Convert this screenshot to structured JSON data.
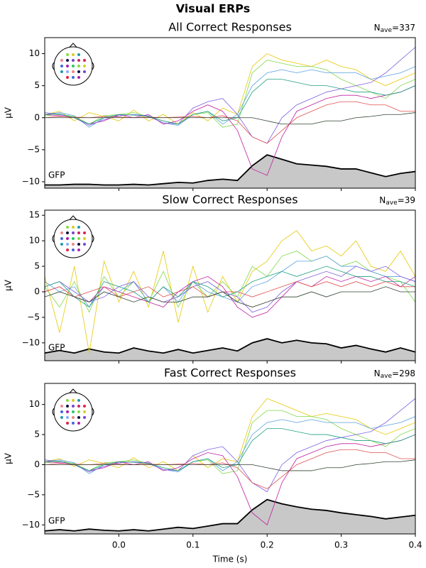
{
  "suptitle": "Visual ERPs",
  "chart_data": [
    {
      "type": "line",
      "title": "All Correct Responses",
      "ylabel": "µV",
      "annotation_n": "N",
      "annotation_sub": "ave",
      "annotation_value": "=337",
      "xlim": [
        -0.1,
        0.4
      ],
      "xticks": [
        {
          "value": 0,
          "label": "0.0"
        },
        0.1,
        0.2,
        0.3,
        0.4
      ],
      "ylim": [
        -11,
        12.5
      ],
      "yticks": [
        {
          "value": -10,
          "label": "−10"
        },
        {
          "value": -5,
          "label": "−5"
        },
        0,
        5,
        10
      ],
      "x": [
        -0.1,
        -0.08,
        -0.06,
        -0.04,
        -0.02,
        0,
        0.02,
        0.04,
        0.06,
        0.08,
        0.1,
        0.12,
        0.14,
        0.16,
        0.18,
        0.2,
        0.22,
        0.24,
        0.26,
        0.28,
        0.3,
        0.32,
        0.34,
        0.36,
        0.38,
        0.4
      ],
      "series": [
        {
          "color": "#e6c800",
          "values": [
            0.5,
            1,
            -0.5,
            0.8,
            0.2,
            -0.5,
            1.2,
            -0.5,
            0.5,
            -1,
            0.8,
            -0.5,
            1.5,
            0.5,
            8,
            10,
            9,
            8.5,
            8,
            9,
            8,
            7.5,
            6,
            5,
            6,
            7
          ]
        },
        {
          "color": "#7fd94a",
          "values": [
            0.3,
            0.5,
            0.2,
            -1,
            0.3,
            0.5,
            0.8,
            0.2,
            -0.5,
            -1,
            0.5,
            0.8,
            -1.5,
            -1,
            7,
            9,
            8.5,
            8,
            8,
            7.5,
            6,
            5,
            4,
            3,
            5,
            6
          ]
        },
        {
          "color": "#5aa0e0",
          "values": [
            0.5,
            0.8,
            0.3,
            -1.5,
            0,
            0.3,
            0.5,
            0.3,
            -0.8,
            -1.2,
            0.5,
            1,
            -1,
            0.5,
            5,
            7,
            7.5,
            7,
            7.5,
            7,
            7,
            7,
            6,
            6.5,
            7,
            8
          ]
        },
        {
          "color": "#c020a0",
          "values": [
            0.5,
            0.3,
            0,
            -1,
            -0.5,
            0.5,
            0,
            0.5,
            -1,
            -0.5,
            1,
            2,
            1,
            -2,
            -8,
            -9,
            -3,
            1,
            2,
            3,
            3.5,
            3.5,
            3,
            3.5,
            4,
            5
          ]
        },
        {
          "color": "#8060e0",
          "values": [
            0.8,
            0.5,
            0,
            -1.2,
            -0.3,
            0.3,
            0.5,
            0.2,
            -0.8,
            -1,
            1.5,
            2.5,
            3,
            0.5,
            -3,
            -4,
            0,
            2,
            3,
            4,
            4.5,
            5,
            5.5,
            7,
            9,
            11
          ]
        },
        {
          "color": "#e05050",
          "values": [
            0,
            0.2,
            0.1,
            0,
            0.2,
            0.1,
            0,
            0.1,
            0,
            0.1,
            0.2,
            0,
            0.3,
            -0.5,
            -3,
            -4,
            -2,
            0,
            1,
            2,
            2.5,
            2.5,
            2,
            2,
            1,
            1
          ]
        },
        {
          "color": "#20a080",
          "values": [
            0.5,
            0.6,
            0,
            -1,
            0,
            0.5,
            0.4,
            0.2,
            -0.5,
            -1,
            0.5,
            1,
            -0.5,
            0,
            4,
            6,
            6,
            5.5,
            5,
            5,
            4.5,
            4,
            4,
            3.5,
            4,
            5
          ]
        },
        {
          "color": "#304030",
          "values": [
            0,
            0,
            0,
            0,
            0,
            0,
            0,
            0,
            0,
            0,
            0,
            0,
            0,
            0,
            0,
            -0.5,
            -1,
            -1,
            -1,
            -0.5,
            -0.5,
            0,
            0.2,
            0.5,
            0.5,
            0.8
          ]
        }
      ],
      "gfp": {
        "name": "GFP",
        "values": [
          -10.5,
          -10.5,
          -10.4,
          -10.4,
          -10.5,
          -10.5,
          -10.4,
          -10.5,
          -10.3,
          -10.1,
          -10.2,
          -9.8,
          -9.6,
          -9.8,
          -7.5,
          -5.8,
          -6.5,
          -7.2,
          -7.4,
          -7.6,
          -8,
          -8,
          -8.6,
          -9.2,
          -8.7,
          -8.4
        ]
      }
    },
    {
      "type": "line",
      "title": "Slow Correct Responses",
      "ylabel": "µV",
      "annotation_n": "N",
      "annotation_sub": "ave",
      "annotation_value": "=39",
      "xlim": [
        -0.1,
        0.4
      ],
      "xticks": [
        {
          "value": 0,
          "label": "0.0"
        },
        0.1,
        0.2,
        0.3,
        0.4
      ],
      "ylim": [
        -13.5,
        16
      ],
      "yticks": [
        {
          "value": -10,
          "label": "−10"
        },
        {
          "value": -5,
          "label": "−5"
        },
        0,
        5,
        10,
        15
      ],
      "x": [
        -0.1,
        -0.08,
        -0.06,
        -0.04,
        -0.02,
        0,
        0.02,
        0.04,
        0.06,
        0.08,
        0.1,
        0.12,
        0.14,
        0.16,
        0.18,
        0.2,
        0.22,
        0.24,
        0.26,
        0.28,
        0.3,
        0.32,
        0.34,
        0.36,
        0.38,
        0.4
      ],
      "series": [
        {
          "color": "#e6c800",
          "values": [
            3,
            -8,
            5,
            -12,
            6,
            -2,
            4,
            -3,
            8,
            -6,
            5,
            -4,
            3,
            -2,
            4,
            6,
            10,
            12,
            8,
            9,
            7,
            10,
            5,
            4,
            8,
            3
          ]
        },
        {
          "color": "#7fd94a",
          "values": [
            1,
            -3,
            2,
            -4,
            3,
            -1,
            2,
            -2,
            4,
            -3,
            2,
            -1,
            2,
            -1,
            5,
            3,
            7,
            8,
            6,
            7,
            5,
            6,
            4,
            3,
            2,
            -2
          ]
        },
        {
          "color": "#5aa0e0",
          "values": [
            2,
            0,
            1,
            -3,
            1,
            0,
            2,
            -2,
            1,
            -2,
            2,
            0,
            -1,
            -2,
            1,
            2,
            4,
            6,
            6,
            7,
            5,
            5,
            4,
            3,
            3,
            2
          ]
        },
        {
          "color": "#c020a0",
          "values": [
            0,
            1,
            -1,
            -2,
            1,
            0,
            -1,
            -2,
            -3,
            0,
            2,
            3,
            1,
            -3,
            -5,
            -4,
            -1,
            2,
            1,
            3,
            2,
            3,
            2,
            3,
            1,
            3
          ]
        },
        {
          "color": "#8060e0",
          "values": [
            1,
            2,
            0,
            -2,
            -1,
            1,
            2,
            -1,
            -2,
            -1,
            1,
            2,
            0,
            -1,
            -4,
            -3,
            0,
            2,
            3,
            4,
            3,
            5,
            4,
            5,
            3,
            2
          ]
        },
        {
          "color": "#e05050",
          "values": [
            0,
            1,
            -1,
            0,
            1,
            -1,
            0,
            1,
            -1,
            0,
            1,
            -1,
            0,
            0,
            -1,
            0,
            1,
            2,
            1,
            2,
            1,
            2,
            1,
            2,
            1,
            1
          ]
        },
        {
          "color": "#20a080",
          "values": [
            1,
            2,
            -1,
            -3,
            2,
            1,
            0,
            -2,
            1,
            -1,
            2,
            1,
            -1,
            0,
            2,
            3,
            4,
            3,
            4,
            5,
            4,
            3,
            3,
            2,
            2,
            1
          ]
        },
        {
          "color": "#304030",
          "values": [
            -1,
            0,
            -1,
            -2,
            0,
            -1,
            -2,
            -1,
            -2,
            -2,
            -1,
            -1,
            0,
            -2,
            -3,
            -2,
            -1,
            -1,
            0,
            -1,
            0,
            0,
            0,
            1,
            0,
            0
          ]
        }
      ],
      "gfp": {
        "name": "GFP",
        "values": [
          -12,
          -11.5,
          -12,
          -11.2,
          -11.8,
          -12,
          -11,
          -11.6,
          -12,
          -11.3,
          -12,
          -11.5,
          -11,
          -11.6,
          -10,
          -9.2,
          -10,
          -9.5,
          -10,
          -10.2,
          -11,
          -10.5,
          -11.2,
          -11.8,
          -11,
          -11.8
        ]
      }
    },
    {
      "type": "line",
      "title": "Fast Correct Responses",
      "ylabel": "µV",
      "xlabel": "Time (s)",
      "annotation_n": "N",
      "annotation_sub": "ave",
      "annotation_value": "=298",
      "xlim": [
        -0.1,
        0.4
      ],
      "xticks": [
        {
          "value": 0,
          "label": "0.0"
        },
        0.1,
        0.2,
        0.3,
        0.4
      ],
      "ylim": [
        -11.5,
        13.5
      ],
      "yticks": [
        {
          "value": -10,
          "label": "−10"
        },
        {
          "value": -5,
          "label": "−5"
        },
        0,
        5,
        10
      ],
      "x": [
        -0.1,
        -0.08,
        -0.06,
        -0.04,
        -0.02,
        0,
        0.02,
        0.04,
        0.06,
        0.08,
        0.1,
        0.12,
        0.14,
        0.16,
        0.18,
        0.2,
        0.22,
        0.24,
        0.26,
        0.28,
        0.3,
        0.32,
        0.34,
        0.36,
        0.38,
        0.4
      ],
      "series": [
        {
          "color": "#e6c800",
          "values": [
            0.5,
            1,
            -0.3,
            0.8,
            0.2,
            -0.5,
            1.2,
            -0.5,
            0.5,
            -1,
            1.5,
            -0.5,
            1,
            0.5,
            8,
            11,
            10,
            9,
            8,
            8.5,
            8,
            7.5,
            6,
            5,
            6,
            7
          ]
        },
        {
          "color": "#7fd94a",
          "values": [
            0.3,
            0.5,
            0.2,
            -1,
            0.3,
            0.5,
            0.8,
            0.2,
            -0.5,
            -1,
            0.5,
            0.8,
            -1.5,
            -1,
            7,
            9,
            9,
            8,
            8,
            7.5,
            6,
            5,
            4,
            3,
            5,
            6
          ]
        },
        {
          "color": "#5aa0e0",
          "values": [
            0.5,
            0.8,
            0.3,
            -1.5,
            0,
            0.3,
            0.5,
            0.3,
            -0.8,
            -1.2,
            0.5,
            1,
            -1,
            0.5,
            5,
            7,
            7.5,
            7,
            7.5,
            7,
            7,
            7,
            6,
            6.5,
            7,
            8
          ]
        },
        {
          "color": "#c020a0",
          "values": [
            0.5,
            0.3,
            0,
            -1,
            -0.5,
            0.5,
            0,
            0.5,
            -1,
            -0.5,
            1,
            2,
            1.5,
            -2,
            -8,
            -10,
            -3,
            1,
            2,
            3,
            3.5,
            3.5,
            3,
            3.5,
            4,
            5
          ]
        },
        {
          "color": "#8060e0",
          "values": [
            0.8,
            0.5,
            0,
            -1.2,
            -0.3,
            0.3,
            0.5,
            0.2,
            -0.8,
            -1,
            1.5,
            2.5,
            3,
            0.5,
            -3,
            -4.5,
            0,
            2,
            3,
            4,
            4.5,
            5,
            5.5,
            7,
            9,
            11
          ]
        },
        {
          "color": "#e05050",
          "values": [
            0,
            0.2,
            0.1,
            0,
            0.2,
            0.1,
            0,
            0.1,
            0,
            0.1,
            0.2,
            0,
            0.3,
            -0.5,
            -3,
            -4,
            -2,
            0,
            1,
            2,
            2.5,
            2.5,
            2,
            2,
            1,
            1
          ]
        },
        {
          "color": "#20a080",
          "values": [
            0.5,
            0.6,
            0,
            -1,
            0,
            0.5,
            0.4,
            0.2,
            -0.5,
            -1,
            0.5,
            1,
            -0.5,
            0,
            4,
            6,
            6,
            5.5,
            5,
            5,
            4.5,
            4,
            4,
            3.5,
            4,
            5
          ]
        },
        {
          "color": "#304030",
          "values": [
            0,
            0,
            0,
            0,
            0,
            0,
            0,
            0,
            0,
            0,
            0,
            0,
            0,
            0,
            0,
            -0.5,
            -1,
            -1,
            -1,
            -0.5,
            -0.5,
            0,
            0.2,
            0.5,
            0.5,
            0.8
          ]
        }
      ],
      "gfp": {
        "name": "GFP",
        "values": [
          -11,
          -10.8,
          -11,
          -10.7,
          -10.9,
          -11,
          -10.8,
          -11,
          -10.7,
          -10.4,
          -10.6,
          -10.2,
          -9.8,
          -9.8,
          -7.5,
          -5.8,
          -6.5,
          -7,
          -7.4,
          -7.6,
          -8,
          -8.3,
          -8.6,
          -9,
          -8.7,
          -8.4
        ]
      }
    }
  ]
}
